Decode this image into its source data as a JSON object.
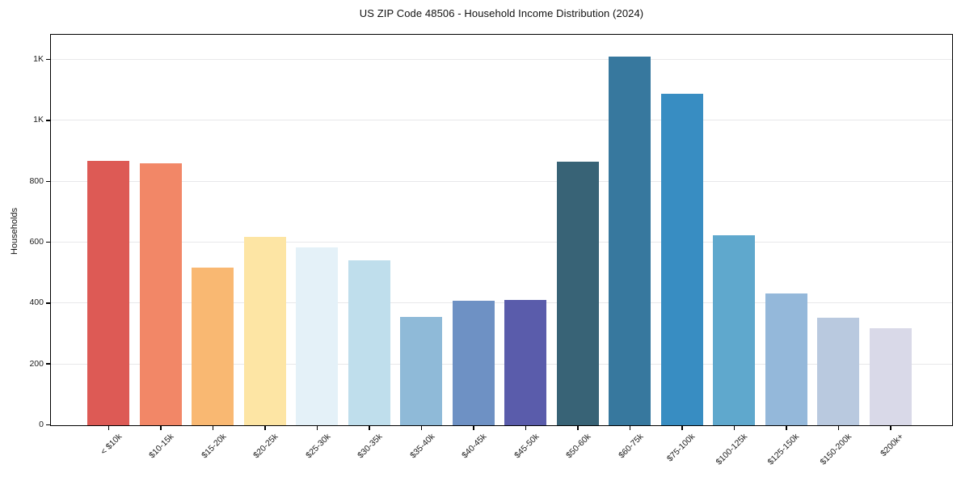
{
  "figure": {
    "title": "US ZIP Code 48506 - Household Income Distribution (2024)"
  },
  "chart_data": {
    "type": "bar",
    "title": "US ZIP Code 48506 - Household Income Distribution (2024)",
    "xlabel": "",
    "ylabel": "Households",
    "ylim": [
      0,
      1280
    ],
    "grid": "horizontal",
    "legend_position": "none",
    "background_color": "#ffffff",
    "axis_color": "#000000",
    "gridline_color": "#e8e8ea",
    "yticks": [
      {
        "value": 0,
        "label": "0"
      },
      {
        "value": 200,
        "label": "200"
      },
      {
        "value": 400,
        "label": "400"
      },
      {
        "value": 600,
        "label": "600"
      },
      {
        "value": 800,
        "label": "800"
      },
      {
        "value": 1000,
        "label": "1K"
      },
      {
        "value": 1200,
        "label": "1K"
      }
    ],
    "categories": [
      "< $10k",
      "$10-15k",
      "$15-20k",
      "$20-25k",
      "$25-30k",
      "$30-35k",
      "$35-40k",
      "$40-45k",
      "$45-50k",
      "$50-60k",
      "$60-75k",
      "$75-100k",
      "$100-125k",
      "$125-150k",
      "$150-200k",
      "$200k+"
    ],
    "values": [
      868,
      860,
      519,
      618,
      585,
      541,
      357,
      408,
      411,
      866,
      1212,
      1088,
      623,
      432,
      352,
      318
    ],
    "bar_colors": [
      "#dd5a55",
      "#f28767",
      "#f9b872",
      "#fde5a4",
      "#e4f1f8",
      "#bfdeec",
      "#8fbad8",
      "#6e91c4",
      "#5a5cab",
      "#386376",
      "#37789e",
      "#388dc2",
      "#5fa8cd",
      "#94b8da",
      "#b9c9df",
      "#d9d9e8"
    ]
  }
}
